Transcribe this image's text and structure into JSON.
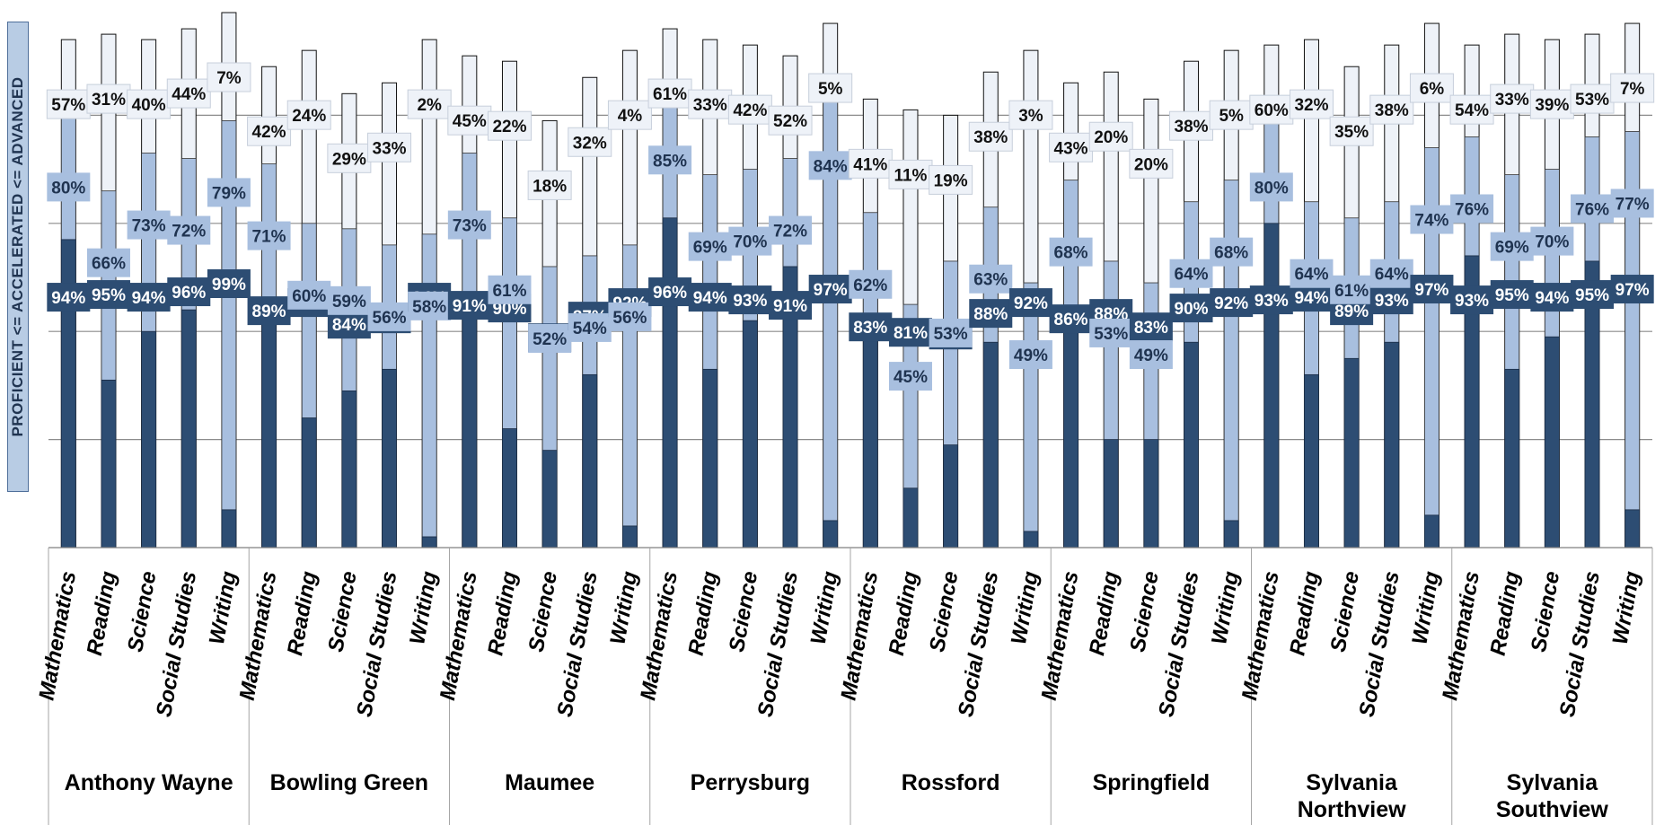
{
  "chart_data": {
    "type": "bar",
    "ylabel": "PROFICIENT <=   ACCELERATED <=   ADVANCED",
    "ylim": [
      0,
      100
    ],
    "stacking": "overlapping cumulative levels",
    "grid": true,
    "subjects": [
      "Mathematics",
      "Reading",
      "Science",
      "Social Studies",
      "Writing"
    ],
    "districts": [
      {
        "name": "Anthony Wayne",
        "proficient": [
          94,
          95,
          94,
          96,
          99
        ],
        "accelerated": [
          80,
          66,
          73,
          72,
          79
        ],
        "advanced": [
          57,
          31,
          40,
          44,
          7
        ]
      },
      {
        "name": "Bowling Green",
        "proficient": [
          89,
          92,
          84,
          86,
          94
        ],
        "accelerated": [
          71,
          60,
          59,
          56,
          58
        ],
        "advanced": [
          42,
          24,
          29,
          33,
          2
        ]
      },
      {
        "name": "Maumee",
        "proficient": [
          91,
          90,
          79,
          87,
          92
        ],
        "accelerated": [
          73,
          61,
          52,
          54,
          56
        ],
        "advanced": [
          45,
          22,
          18,
          32,
          4
        ]
      },
      {
        "name": "Perrysburg",
        "proficient": [
          96,
          94,
          93,
          91,
          97
        ],
        "accelerated": [
          85,
          69,
          70,
          72,
          84
        ],
        "advanced": [
          61,
          33,
          42,
          52,
          5
        ]
      },
      {
        "name": "Rossford",
        "proficient": [
          83,
          81,
          80,
          88,
          92
        ],
        "accelerated": [
          62,
          45,
          53,
          63,
          49
        ],
        "advanced": [
          41,
          11,
          19,
          38,
          3
        ]
      },
      {
        "name": "Springfield",
        "proficient": [
          86,
          88,
          83,
          90,
          92
        ],
        "accelerated": [
          68,
          53,
          49,
          64,
          68
        ],
        "advanced": [
          43,
          20,
          20,
          38,
          5
        ]
      },
      {
        "name": "Sylvania Northview",
        "proficient": [
          93,
          94,
          89,
          93,
          97
        ],
        "accelerated": [
          80,
          64,
          61,
          64,
          74
        ],
        "advanced": [
          60,
          32,
          35,
          38,
          6
        ]
      },
      {
        "name": "Sylvania Southview",
        "proficient": [
          93,
          95,
          94,
          95,
          97
        ],
        "accelerated": [
          76,
          69,
          70,
          76,
          77
        ],
        "advanced": [
          54,
          33,
          39,
          53,
          7
        ]
      }
    ],
    "colors": {
      "proficient": "#2d4d73",
      "accelerated": "#a8bfdf",
      "advanced": "#eef2f8",
      "label_light_bg": "#eef2f8"
    }
  }
}
